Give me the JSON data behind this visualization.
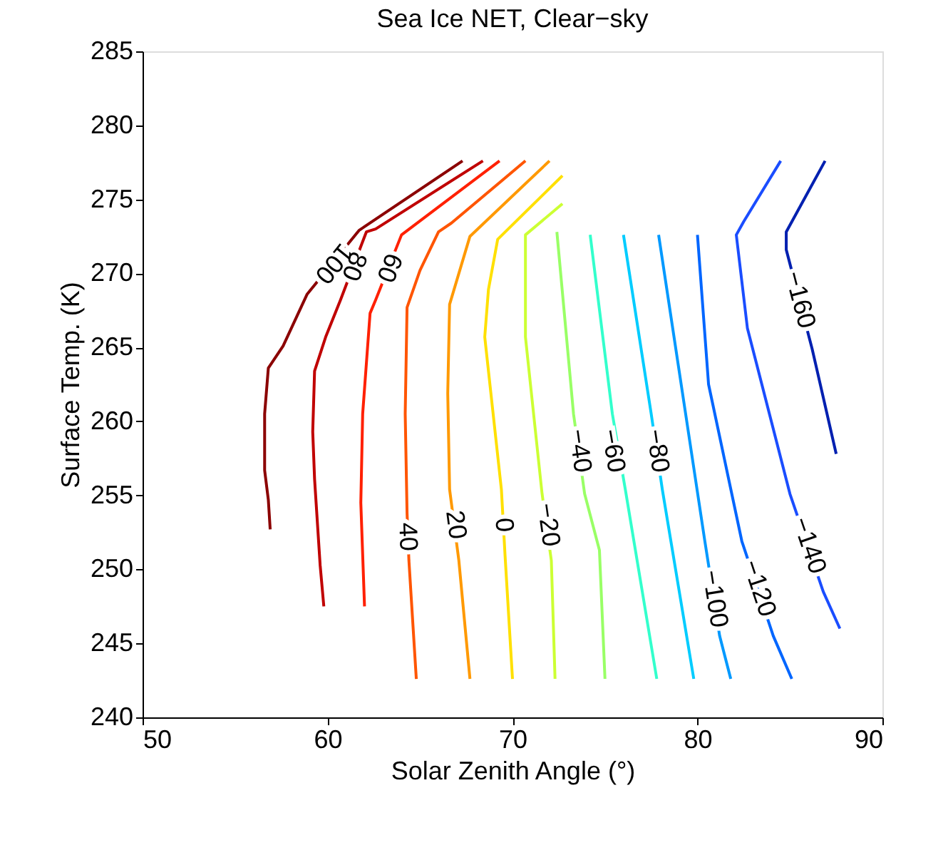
{
  "chart_data": {
    "type": "line",
    "title": "Sea Ice NET, Clear−sky",
    "xlabel": "Solar Zenith Angle (°)",
    "ylabel": "Surface Temp. (K)",
    "xlim": [
      50,
      90
    ],
    "xticks": [
      50,
      60,
      70,
      80,
      90
    ],
    "ylim": [
      240,
      285
    ],
    "yticks": [
      240,
      245,
      250,
      255,
      260,
      265,
      270,
      275,
      280,
      285
    ],
    "grid": false,
    "legend": false,
    "marker": "none",
    "line_style": "solid",
    "series": [
      {
        "color": "#8b0000",
        "x": [
          56.9,
          56.8,
          56.6,
          56.6,
          56.8,
          57.6,
          58.9,
          61.7,
          67.3
        ],
        "values": [
          252.7,
          254.7,
          256.7,
          260.5,
          263.6,
          265.1,
          268.6,
          272.9,
          277.6
        ]
      },
      {
        "color": "#c00000",
        "x": [
          59.8,
          59.6,
          59.3,
          59.2,
          59.3,
          59.9,
          60.7,
          62.1,
          62.6,
          68.4
        ],
        "values": [
          247.5,
          250.3,
          256.1,
          259.3,
          263.4,
          265.7,
          268.2,
          272.8,
          273.0,
          277.6
        ]
      },
      {
        "color": "#ff2000",
        "x": [
          62.0,
          61.8,
          61.9,
          62.3,
          62.6,
          64.0,
          69.3
        ],
        "values": [
          247.5,
          254.5,
          260.5,
          267.3,
          268.2,
          272.6,
          277.6
        ]
      },
      {
        "color": "#ff5500",
        "x": [
          64.8,
          64.4,
          64.3,
          64.2,
          64.3,
          65.0,
          66.0,
          66.7,
          70.7
        ],
        "values": [
          242.6,
          250.6,
          253.8,
          260.5,
          267.7,
          270.2,
          272.8,
          273.4,
          277.6
        ]
      },
      {
        "color": "#ff9900",
        "x": [
          67.7,
          67.1,
          66.6,
          66.5,
          66.6,
          67.7,
          72.0
        ],
        "values": [
          242.6,
          250.6,
          255.4,
          261.9,
          267.9,
          272.5,
          277.6
        ]
      },
      {
        "color": "#ffe000",
        "x": [
          70.0,
          69.6,
          69.4,
          68.5,
          68.7,
          69.2,
          72.7
        ],
        "values": [
          242.6,
          250.9,
          255.4,
          265.7,
          268.9,
          272.3,
          276.6
        ]
      },
      {
        "color": "#ccff33",
        "x": [
          72.3,
          72.1,
          71.6,
          70.7,
          70.7,
          72.7
        ],
        "values": [
          242.6,
          250.6,
          255.1,
          265.7,
          272.6,
          274.7
        ]
      },
      {
        "color": "#99ff66",
        "x": [
          75.0,
          74.7,
          73.9,
          73.3,
          72.4
        ],
        "values": [
          242.6,
          251.3,
          255.1,
          260.5,
          272.8
        ]
      },
      {
        "color": "#33ffcc",
        "x": [
          77.8,
          76.1,
          75.4,
          74.2
        ],
        "values": [
          242.6,
          255.4,
          260.5,
          272.6
        ]
      },
      {
        "color": "#00ccff",
        "x": [
          79.8,
          78.1,
          77.5,
          76.0
        ],
        "values": [
          242.6,
          255.4,
          260.5,
          272.6
        ]
      },
      {
        "color": "#0099ff",
        "x": [
          81.8,
          81.2,
          80.4,
          77.9
        ],
        "values": [
          242.6,
          245.5,
          251.9,
          272.6
        ]
      },
      {
        "color": "#0066ff",
        "x": [
          85.1,
          84.1,
          82.4,
          80.6,
          80.0
        ],
        "values": [
          242.6,
          245.5,
          251.9,
          262.5,
          272.6
        ]
      },
      {
        "color": "#1a4dff",
        "x": [
          87.7,
          86.8,
          85.0,
          82.7,
          82.1,
          82.5,
          84.5
        ],
        "values": [
          246.0,
          248.5,
          255.1,
          266.3,
          272.6,
          273.5,
          277.6
        ]
      },
      {
        "color": "#0020b0",
        "x": [
          87.5,
          86.2,
          84.8,
          84.8,
          86.9
        ],
        "values": [
          257.8,
          264.9,
          271.6,
          272.8,
          277.6
        ]
      }
    ],
    "annotations": [
      {
        "text": "100",
        "x": 60.3,
        "y": 270.7
      },
      {
        "text": "80",
        "x": 61.4,
        "y": 270.5
      },
      {
        "text": "60",
        "x": 63.3,
        "y": 270.4
      },
      {
        "text": "40",
        "x": 64.3,
        "y": 252.2
      },
      {
        "text": "20",
        "x": 66.9,
        "y": 253.0
      },
      {
        "text": "0",
        "x": 69.5,
        "y": 253.0
      },
      {
        "text": "−20",
        "x": 71.9,
        "y": 253.0
      },
      {
        "text": "−40",
        "x": 73.6,
        "y": 258.0
      },
      {
        "text": "−60",
        "x": 75.4,
        "y": 258.0
      },
      {
        "text": "−80",
        "x": 77.8,
        "y": 258.0
      },
      {
        "text": "−100",
        "x": 80.9,
        "y": 248.0
      },
      {
        "text": "−120",
        "x": 83.3,
        "y": 248.7
      },
      {
        "text": "−140",
        "x": 86.0,
        "y": 251.6
      },
      {
        "text": "−160",
        "x": 85.5,
        "y": 268.2
      }
    ]
  }
}
